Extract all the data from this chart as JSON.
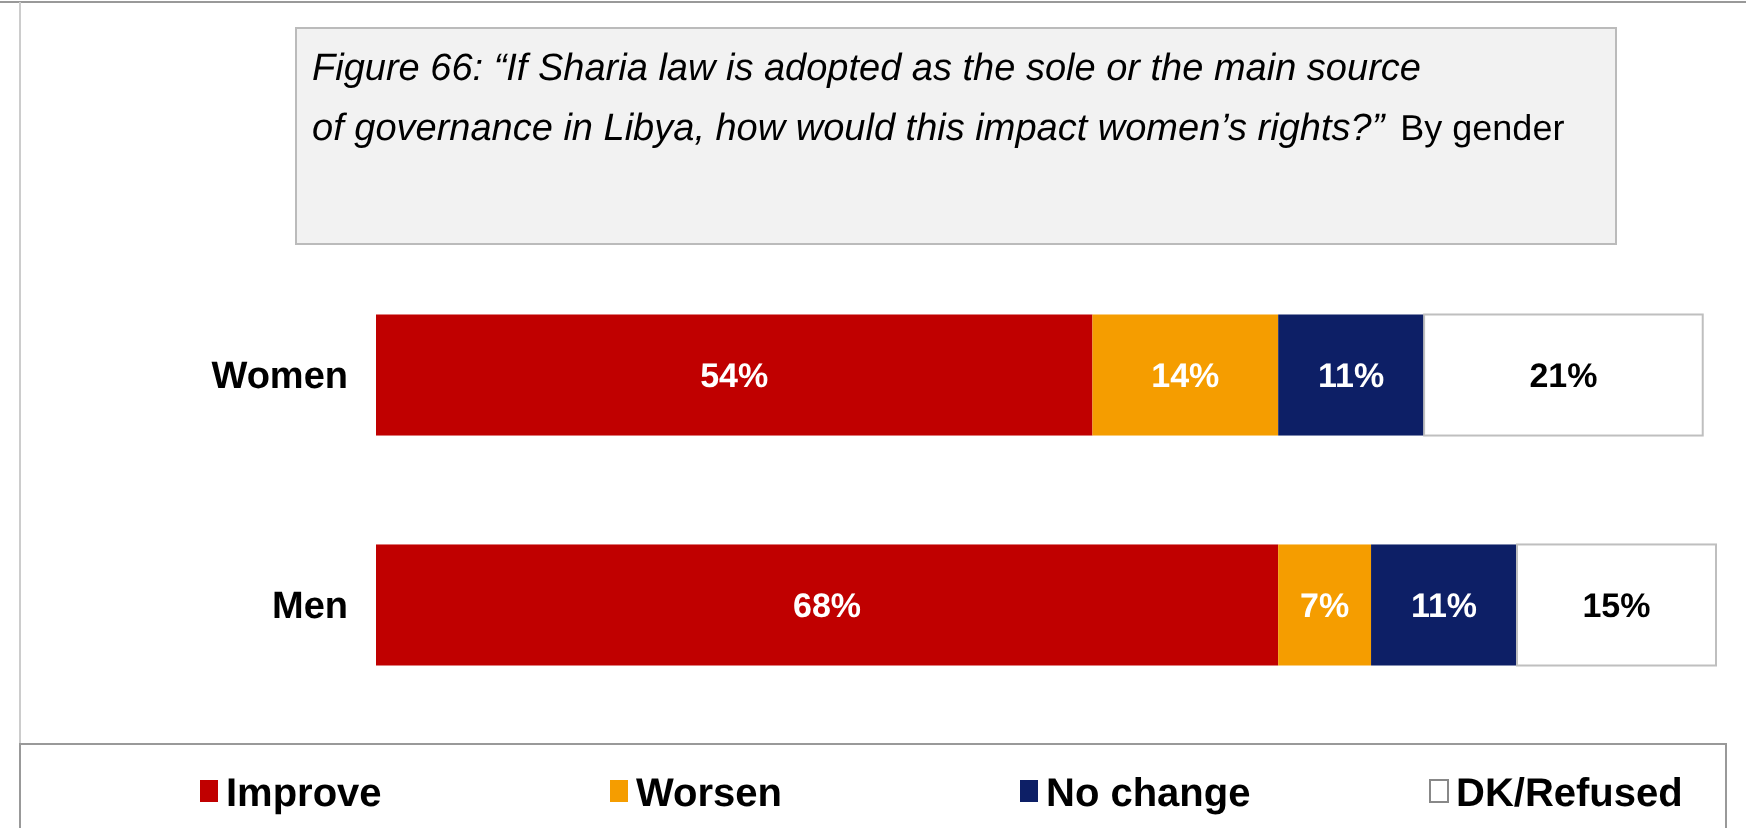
{
  "chart_data": {
    "type": "bar",
    "orientation": "horizontal",
    "stacked": true,
    "title": "Figure 66: “If Sharia law is adopted as the sole or the main source of governance in Libya, how would this impact women’s rights?”",
    "subtitle": "By gender",
    "categories": [
      "Women",
      "Men"
    ],
    "series": [
      {
        "name": "Improve",
        "color": "#c00000",
        "values": [
          54,
          68
        ],
        "value_labels": [
          "54%",
          "68%"
        ]
      },
      {
        "name": "Worsen",
        "color": "#f59d00",
        "values": [
          14,
          7
        ],
        "value_labels": [
          "14%",
          "7%"
        ]
      },
      {
        "name": "No change",
        "color": "#0d1f66",
        "values": [
          11,
          11
        ],
        "value_labels": [
          "11%",
          "11%"
        ]
      },
      {
        "name": "DK/Refused",
        "color": "#ffffff",
        "values": [
          21,
          15
        ],
        "value_labels": [
          "21%",
          "15%"
        ]
      }
    ],
    "legend": "bottom"
  }
}
